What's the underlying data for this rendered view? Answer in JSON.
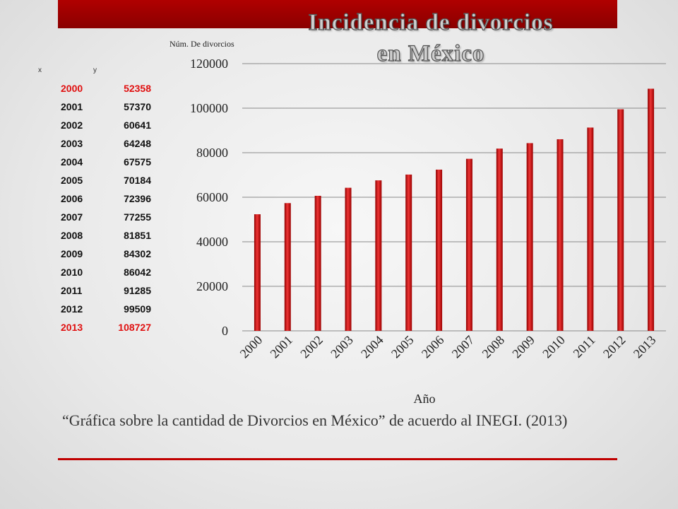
{
  "slide": {
    "title_line1": "Incidencia de divorcios",
    "title_line2": "en México",
    "caption": "“Gráfica sobre la cantidad de Divorcios en México” de acuerdo al INEGI. (2013)"
  },
  "table": {
    "col_x": "x",
    "col_y": "y",
    "rows": [
      {
        "x": "2000",
        "y": "52358",
        "highlight": true
      },
      {
        "x": "2001",
        "y": "57370",
        "highlight": false
      },
      {
        "x": "2002",
        "y": "60641",
        "highlight": false
      },
      {
        "x": "2003",
        "y": "64248",
        "highlight": false
      },
      {
        "x": "2004",
        "y": "67575",
        "highlight": false
      },
      {
        "x": "2005",
        "y": "70184",
        "highlight": false
      },
      {
        "x": "2006",
        "y": "72396",
        "highlight": false
      },
      {
        "x": "2007",
        "y": "77255",
        "highlight": false
      },
      {
        "x": "2008",
        "y": "81851",
        "highlight": false
      },
      {
        "x": "2009",
        "y": "84302",
        "highlight": false
      },
      {
        "x": "2010",
        "y": "86042",
        "highlight": false
      },
      {
        "x": "2011",
        "y": "91285",
        "highlight": false
      },
      {
        "x": "2012",
        "y": "99509",
        "highlight": false
      },
      {
        "x": "2013",
        "y": "108727",
        "highlight": true
      }
    ]
  },
  "chart_data": {
    "type": "bar",
    "xlabel": "Año",
    "ylabel": "Núm. De divorcios",
    "categories": [
      "2000",
      "2001",
      "2002",
      "2003",
      "2004",
      "2005",
      "2006",
      "2007",
      "2008",
      "2009",
      "2010",
      "2011",
      "2012",
      "2013"
    ],
    "values": [
      52358,
      57370,
      60641,
      64248,
      67575,
      70184,
      72396,
      77255,
      81851,
      84302,
      86042,
      91285,
      99509,
      108727
    ],
    "ylim": [
      0,
      120000
    ],
    "yticks": [
      0,
      20000,
      40000,
      60000,
      80000,
      100000,
      120000
    ],
    "grid": true,
    "legend": "none",
    "bar_color": "#d41a1a"
  }
}
